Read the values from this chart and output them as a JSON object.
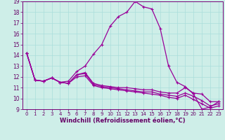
{
  "xlabel": "Windchill (Refroidissement éolien,°C)",
  "background_color": "#ceeee8",
  "grid_color": "#aaddda",
  "line_color": "#990099",
  "xlim": [
    -0.5,
    23.5
  ],
  "ylim": [
    9,
    19
  ],
  "xticks": [
    0,
    1,
    2,
    3,
    4,
    5,
    6,
    7,
    8,
    9,
    10,
    11,
    12,
    13,
    14,
    15,
    16,
    17,
    18,
    19,
    20,
    21,
    22,
    23
  ],
  "yticks": [
    9,
    10,
    11,
    12,
    13,
    14,
    15,
    16,
    17,
    18,
    19
  ],
  "line_big": [
    14.2,
    11.7,
    11.6,
    11.9,
    11.5,
    11.6,
    12.5,
    13.0,
    14.1,
    15.0,
    16.7,
    17.6,
    18.0,
    19.0,
    18.5,
    18.3,
    16.5,
    13.0,
    11.5,
    11.1,
    10.4,
    9.0,
    9.2,
    9.7
  ],
  "line_a": [
    14.2,
    11.7,
    11.6,
    11.9,
    11.5,
    11.4,
    12.2,
    12.4,
    11.4,
    11.2,
    11.1,
    11.0,
    11.0,
    10.9,
    10.8,
    10.8,
    10.6,
    10.5,
    10.5,
    11.0,
    10.5,
    10.4,
    9.7,
    9.7
  ],
  "line_b": [
    14.2,
    11.7,
    11.6,
    11.9,
    11.5,
    11.4,
    12.2,
    12.3,
    11.3,
    11.1,
    11.0,
    10.9,
    10.8,
    10.7,
    10.6,
    10.6,
    10.4,
    10.3,
    10.2,
    10.5,
    10.2,
    9.8,
    9.3,
    9.5
  ],
  "line_c": [
    14.2,
    11.7,
    11.6,
    11.9,
    11.5,
    11.4,
    12.0,
    12.1,
    11.2,
    11.0,
    10.9,
    10.8,
    10.7,
    10.6,
    10.5,
    10.4,
    10.3,
    10.1,
    10.0,
    10.3,
    9.9,
    9.5,
    9.1,
    9.3
  ]
}
